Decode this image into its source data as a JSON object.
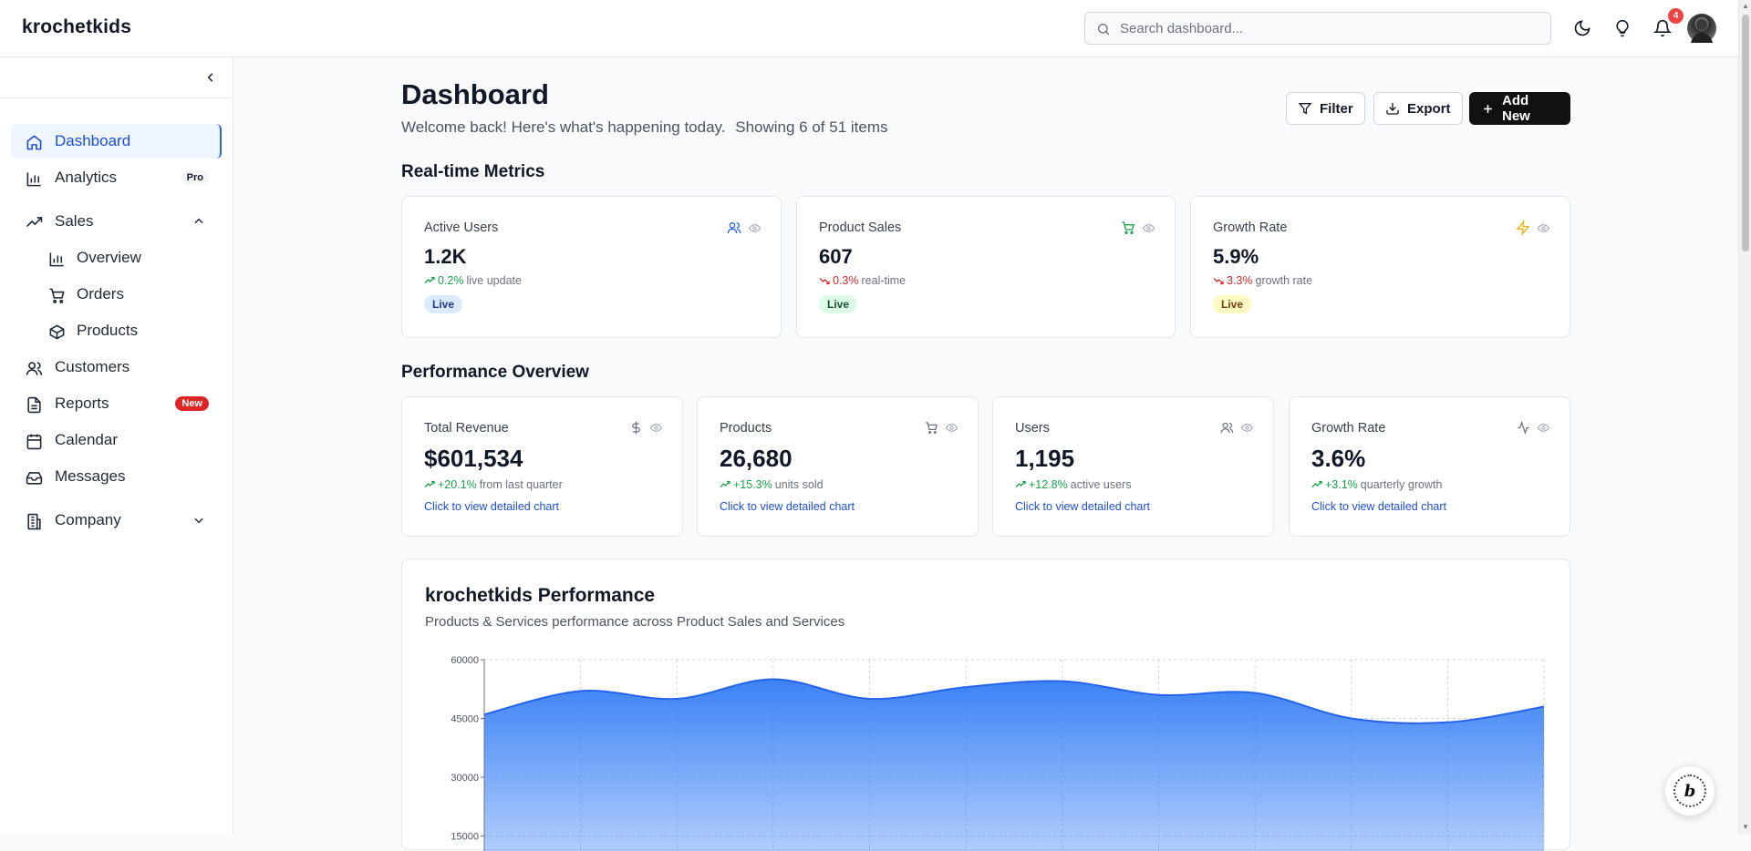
{
  "app": {
    "brand": "krochetkids",
    "search_placeholder": "Search dashboard...",
    "notification_count": "4"
  },
  "sidebar": {
    "items": [
      {
        "label": "Dashboard",
        "icon": "home-icon",
        "active": true
      },
      {
        "label": "Analytics",
        "icon": "bar-chart-icon",
        "badge": "Pro"
      },
      {
        "label": "Sales",
        "icon": "trending-up-icon",
        "expanded": true
      },
      {
        "label": "Overview",
        "icon": "bar-chart-icon",
        "sub": true
      },
      {
        "label": "Orders",
        "icon": "cart-icon",
        "sub": true
      },
      {
        "label": "Products",
        "icon": "box-icon",
        "sub": true
      },
      {
        "label": "Customers",
        "icon": "users-icon"
      },
      {
        "label": "Reports",
        "icon": "file-icon",
        "badge": "New"
      },
      {
        "label": "Calendar",
        "icon": "calendar-icon"
      },
      {
        "label": "Messages",
        "icon": "inbox-icon"
      },
      {
        "label": "Company",
        "icon": "building-icon",
        "expanded": false
      }
    ]
  },
  "header": {
    "title": "Dashboard",
    "welcome": "Welcome back! Here's what's happening today.",
    "showing": "Showing 6 of 51 items",
    "filter_label": "Filter",
    "export_label": "Export",
    "add_label": "Add New"
  },
  "realtime": {
    "title": "Real-time Metrics",
    "cards": [
      {
        "label": "Active Users",
        "value": "1.2K",
        "delta": "0.2%",
        "direction": "up",
        "note": "live update",
        "pill": "Live",
        "icon": "users-icon",
        "accent": "#2563eb"
      },
      {
        "label": "Product Sales",
        "value": "607",
        "delta": "0.3%",
        "direction": "down",
        "note": "real-time",
        "pill": "Live",
        "icon": "cart-icon",
        "accent": "#16a34a"
      },
      {
        "label": "Growth Rate",
        "value": "5.9%",
        "delta": "3.3%",
        "direction": "down",
        "note": "growth rate",
        "pill": "Live",
        "icon": "zap-icon",
        "accent": "#eab308"
      }
    ]
  },
  "performance": {
    "title": "Performance Overview",
    "link": "Click to view detailed chart",
    "cards": [
      {
        "label": "Total Revenue",
        "value": "$601,534",
        "delta": "+20.1%",
        "note": "from last quarter",
        "icon": "dollar-icon"
      },
      {
        "label": "Products",
        "value": "26,680",
        "delta": "+15.3%",
        "note": "units sold",
        "icon": "cart-icon"
      },
      {
        "label": "Users",
        "value": "1,195",
        "delta": "+12.8%",
        "note": "active users",
        "icon": "users-icon"
      },
      {
        "label": "Growth Rate",
        "value": "3.6%",
        "delta": "+3.1%",
        "note": "quarterly growth",
        "icon": "activity-icon"
      }
    ]
  },
  "chart": {
    "title": "krochetkids Performance",
    "subtitle": "Products & Services performance across Product Sales and Services"
  },
  "chart_data": {
    "type": "area",
    "title": "krochetkids Performance",
    "ylim": [
      0,
      60000
    ],
    "yticks": [
      60000,
      45000,
      30000,
      15000
    ],
    "grid": true,
    "color": "#3b82f6",
    "x_index": [
      0,
      1,
      2,
      3,
      4,
      5,
      6,
      7,
      8,
      9,
      10,
      11
    ],
    "values": [
      46000,
      52000,
      50000,
      55000,
      50000,
      53000,
      54500,
      51000,
      51500,
      45000,
      44000,
      48000
    ]
  },
  "colors": {
    "accent": "#2563eb",
    "primary_button": "#111111",
    "up": "#16a34a",
    "down": "#dc2626"
  }
}
